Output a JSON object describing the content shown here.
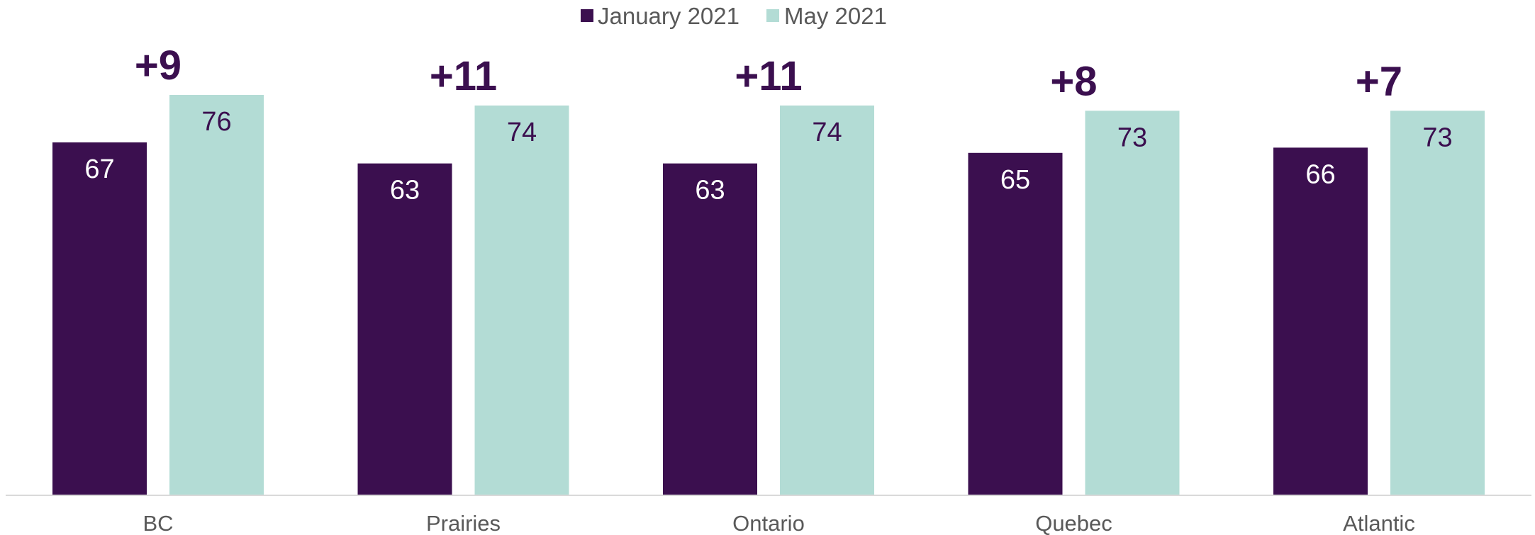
{
  "chart_data": {
    "type": "bar",
    "categories": [
      "BC",
      "Prairies",
      "Ontario",
      "Quebec",
      "Atlantic"
    ],
    "series": [
      {
        "name": "January 2021",
        "values": [
          67,
          63,
          63,
          65,
          66
        ],
        "color": "#3b0f4f",
        "label_color": "#ffffff"
      },
      {
        "name": "May 2021",
        "values": [
          76,
          74,
          74,
          73,
          73
        ],
        "color": "#b3dcd5",
        "label_color": "#3b0f4f"
      }
    ],
    "differences": [
      "+9",
      "+11",
      "+11",
      "+8",
      "+7"
    ],
    "difference_color": "#3b0f4f",
    "axis_color": "#d9d9d9",
    "ylim": [
      0,
      76
    ],
    "legend_position": "top-center",
    "grid": false
  }
}
